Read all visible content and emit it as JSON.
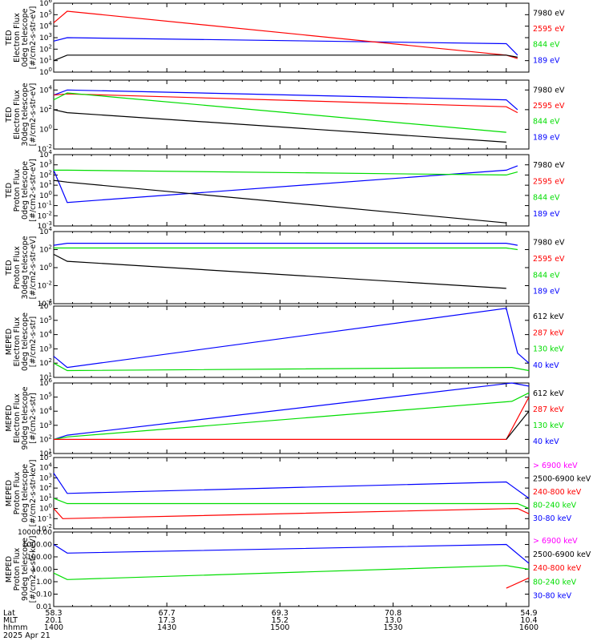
{
  "colors": {
    "black": "#000000",
    "red": "#ff0000",
    "green": "#00dd00",
    "blue": "#0000ff",
    "magenta": "#ff00ff"
  },
  "footer": {
    "labels": [
      "Lat",
      "MLT",
      "hhmm"
    ],
    "date": "2025 Apr 21",
    "columns": [
      [
        "58.3",
        "20.1",
        "1400"
      ],
      [
        "67.7",
        "17.3",
        "1430"
      ],
      [
        "69.3",
        "15.2",
        "1500"
      ],
      [
        "70.8",
        "13.0",
        "1530"
      ],
      [
        "54.9",
        "10.4",
        "1600"
      ]
    ]
  },
  "chart_data": [
    {
      "type": "line",
      "ylabel": [
        "TED",
        "Electron Flux",
        "0deg telescope",
        "[#/cm2-s-str-eV]"
      ],
      "yscale": "log",
      "ylim": [
        1,
        1000000
      ],
      "yticks": [
        {
          "v": 1,
          "label": "10^0"
        },
        {
          "v": 10,
          "label": "10^1"
        },
        {
          "v": 100,
          "label": "10^2"
        },
        {
          "v": 1000,
          "label": "10^3"
        },
        {
          "v": 10000,
          "label": "10^4"
        },
        {
          "v": 100000,
          "label": "10^5"
        },
        {
          "v": 1000000,
          "label": "10^6"
        }
      ],
      "legend": [
        "7980 eV",
        "2595 eV",
        "844 eV",
        "189 eV"
      ],
      "legend_colors": [
        "black",
        "red",
        "green",
        "blue"
      ],
      "series": [
        {
          "name": "189 eV",
          "color": "blue",
          "x": [
            0,
            0.12,
            4.0,
            4.1
          ],
          "y": [
            500,
            1000,
            300,
            30
          ]
        },
        {
          "name": "2595 eV",
          "color": "red",
          "x": [
            0,
            0.12,
            4.0,
            4.1
          ],
          "y": [
            20000,
            200000,
            30,
            15
          ]
        },
        {
          "name": "7980 eV",
          "color": "black",
          "x": [
            0,
            0.12,
            4.0,
            4.1
          ],
          "y": [
            10,
            30,
            30,
            20
          ]
        }
      ]
    },
    {
      "type": "line",
      "ylabel": [
        "TED",
        "Electron Flux",
        "30deg telescope",
        "[#/cm2-s-str-eV]"
      ],
      "yscale": "log",
      "ylim": [
        0.01,
        100000
      ],
      "yticks": [
        {
          "v": 0.01,
          "label": "10^-2"
        },
        {
          "v": 1,
          "label": "10^0"
        },
        {
          "v": 100,
          "label": "10^2"
        },
        {
          "v": 10000,
          "label": "10^4"
        }
      ],
      "legend": [
        "7980 eV",
        "2595 eV",
        "844 eV",
        "189 eV"
      ],
      "legend_colors": [
        "black",
        "red",
        "green",
        "blue"
      ],
      "series": [
        {
          "name": "189 eV",
          "color": "blue",
          "x": [
            0,
            0.12,
            4.0,
            4.1
          ],
          "y": [
            3000,
            10000,
            1000,
            100
          ]
        },
        {
          "name": "2595 eV",
          "color": "red",
          "x": [
            0,
            0.12,
            4.0,
            4.1
          ],
          "y": [
            3000,
            4000,
            200,
            50
          ]
        },
        {
          "name": "844 eV",
          "color": "green",
          "x": [
            0,
            0.12,
            4.0
          ],
          "y": [
            1000,
            5000,
            0.5
          ]
        },
        {
          "name": "7980 eV",
          "color": "black",
          "x": [
            0,
            0.12,
            4.0
          ],
          "y": [
            100,
            50,
            0.05
          ]
        }
      ]
    },
    {
      "type": "line",
      "ylabel": [
        "TED",
        "Proton Flux",
        "0deg telescope",
        "[#/cm2-s-str-eV]"
      ],
      "yscale": "log",
      "ylim": [
        0.001,
        10000
      ],
      "yticks": [
        {
          "v": 0.001,
          "label": "10^-3"
        },
        {
          "v": 0.01,
          "label": "10^-2"
        },
        {
          "v": 0.1,
          "label": "10^-1"
        },
        {
          "v": 1,
          "label": "10^0"
        },
        {
          "v": 10,
          "label": "10^1"
        },
        {
          "v": 100,
          "label": "10^2"
        },
        {
          "v": 1000,
          "label": "10^3"
        },
        {
          "v": 10000,
          "label": "10^4"
        }
      ],
      "legend": [
        "7980 eV",
        "2595 eV",
        "844 eV",
        "189 eV"
      ],
      "legend_colors": [
        "black",
        "red",
        "green",
        "blue"
      ],
      "series": [
        {
          "name": "189 eV",
          "color": "blue",
          "x": [
            0,
            0.12,
            4.0,
            4.1
          ],
          "y": [
            300,
            0.2,
            300,
            800
          ]
        },
        {
          "name": "844 eV",
          "color": "green",
          "x": [
            0,
            0.12,
            4.0,
            4.1
          ],
          "y": [
            300,
            300,
            100,
            200
          ]
        },
        {
          "name": "7980 eV",
          "color": "black",
          "x": [
            0,
            0.12,
            4.0
          ],
          "y": [
            30,
            20,
            0.002
          ]
        }
      ]
    },
    {
      "type": "line",
      "ylabel": [
        "TED",
        "Proton Flux",
        "30deg telescope",
        "[#/cm2-s-str-eV]"
      ],
      "yscale": "log",
      "ylim": [
        0.0001,
        10000
      ],
      "yticks": [
        {
          "v": 0.0001,
          "label": "10^-4"
        },
        {
          "v": 0.01,
          "label": "10^-2"
        },
        {
          "v": 1,
          "label": "10^0"
        },
        {
          "v": 100,
          "label": "10^2"
        },
        {
          "v": 10000,
          "label": "10^4"
        }
      ],
      "legend": [
        "7980 eV",
        "2595 eV",
        "844 eV",
        "189 eV"
      ],
      "legend_colors": [
        "black",
        "red",
        "green",
        "blue"
      ],
      "series": [
        {
          "name": "189 eV",
          "color": "blue",
          "x": [
            0,
            0.12,
            4.0,
            4.1
          ],
          "y": [
            300,
            500,
            500,
            300
          ]
        },
        {
          "name": "844 eV",
          "color": "green",
          "x": [
            0,
            0.12,
            4.0,
            4.1
          ],
          "y": [
            150,
            150,
            150,
            100
          ]
        },
        {
          "name": "7980 eV",
          "color": "black",
          "x": [
            0,
            0.12,
            4.0
          ],
          "y": [
            30,
            5,
            0.005
          ]
        }
      ]
    },
    {
      "type": "line",
      "ylabel": [
        "MEPED",
        "Electron Flux",
        "0deg telescope",
        "[#/cm2-s-str]"
      ],
      "yscale": "log",
      "ylim": [
        10,
        1000000
      ],
      "yticks": [
        {
          "v": 10,
          "label": "10^1"
        },
        {
          "v": 100,
          "label": "10^2"
        },
        {
          "v": 1000,
          "label": "10^3"
        },
        {
          "v": 10000,
          "label": "10^4"
        },
        {
          "v": 100000,
          "label": "10^5"
        },
        {
          "v": 1000000,
          "label": "10^6"
        }
      ],
      "legend": [
        "612 keV",
        "287 keV",
        "130 keV",
        "40 keV"
      ],
      "legend_colors": [
        "black",
        "red",
        "green",
        "blue"
      ],
      "series": [
        {
          "name": "40 keV",
          "color": "blue",
          "x": [
            0,
            0.12,
            4.0,
            4.1,
            4.2
          ],
          "y": [
            300,
            50,
            700000,
            500,
            100
          ]
        },
        {
          "name": "130 keV",
          "color": "green",
          "x": [
            0,
            0.12,
            4.05,
            4.2
          ],
          "y": [
            100,
            30,
            50,
            30
          ]
        }
      ]
    },
    {
      "type": "line",
      "ylabel": [
        "MEPED",
        "Electron Flux",
        "90deg telescope",
        "[#/cm2-s-str]"
      ],
      "yscale": "log",
      "ylim": [
        10,
        1000000
      ],
      "yticks": [
        {
          "v": 10,
          "label": "10^1"
        },
        {
          "v": 100,
          "label": "10^2"
        },
        {
          "v": 1000,
          "label": "10^3"
        },
        {
          "v": 10000,
          "label": "10^4"
        },
        {
          "v": 100000,
          "label": "10^5"
        },
        {
          "v": 1000000,
          "label": "10^6"
        }
      ],
      "legend": [
        "612 keV",
        "287 keV",
        "130 keV",
        "40 keV"
      ],
      "legend_colors": [
        "black",
        "red",
        "green",
        "blue"
      ],
      "series": [
        {
          "name": "40 keV",
          "color": "blue",
          "x": [
            0,
            0.12,
            4.05,
            4.2
          ],
          "y": [
            100,
            200,
            1000000,
            600000
          ]
        },
        {
          "name": "130 keV",
          "color": "green",
          "x": [
            0,
            0.12,
            4.05,
            4.2
          ],
          "y": [
            100,
            150,
            50000,
            200000
          ]
        },
        {
          "name": "287 keV",
          "color": "red",
          "x": [
            0,
            0.12,
            4.0,
            4.2
          ],
          "y": [
            100,
            100,
            100,
            100000
          ]
        },
        {
          "name": "612 keV",
          "color": "black",
          "x": [
            4.0,
            4.2
          ],
          "y": [
            100,
            10000
          ]
        }
      ]
    },
    {
      "type": "line",
      "ylabel": [
        "MEPED",
        "Proton Flux",
        "0deg telescope",
        "[#/cm2-s-str-keV]"
      ],
      "yscale": "log",
      "ylim": [
        0.01,
        100000
      ],
      "yticks": [
        {
          "v": 0.01,
          "label": "10^-2"
        },
        {
          "v": 0.1,
          "label": "10^-1"
        },
        {
          "v": 1,
          "label": "10^0"
        },
        {
          "v": 10,
          "label": "10^1"
        },
        {
          "v": 100,
          "label": "10^2"
        },
        {
          "v": 1000,
          "label": "10^3"
        },
        {
          "v": 10000,
          "label": "10^4"
        },
        {
          "v": 100000,
          "label": "10^5"
        }
      ],
      "legend": [
        "> 6900 keV",
        "2500-6900 keV",
        "240-800 keV",
        "80-240 keV",
        "30-80 keV"
      ],
      "legend_colors": [
        "magenta",
        "black",
        "red",
        "green",
        "blue"
      ],
      "series": [
        {
          "name": "30-80 keV",
          "color": "blue",
          "x": [
            0,
            0.12,
            4.0,
            4.2
          ],
          "y": [
            3000,
            30,
            400,
            10
          ]
        },
        {
          "name": "80-240 keV",
          "color": "green",
          "x": [
            0,
            0.12,
            4.1,
            4.2
          ],
          "y": [
            10,
            3,
            3,
            1
          ]
        },
        {
          "name": "240-800 keV",
          "color": "red",
          "x": [
            0,
            0.08,
            4.1,
            4.2
          ],
          "y": [
            1,
            0.1,
            1,
            0.3
          ]
        }
      ]
    },
    {
      "type": "line",
      "ylabel": [
        "MEPED",
        "Proton Flux",
        "90deg telescope",
        "[#/cm2-s-str-keV]"
      ],
      "yscale": "log",
      "ylim": [
        0.01,
        10000
      ],
      "yticks": [
        {
          "v": 0.01,
          "label": "0.01"
        },
        {
          "v": 0.1,
          "label": "0.10"
        },
        {
          "v": 1,
          "label": "1.00"
        },
        {
          "v": 10,
          "label": "10.00"
        },
        {
          "v": 100,
          "label": "100.00"
        },
        {
          "v": 1000,
          "label": "1000.00"
        },
        {
          "v": 10000,
          "label": "10000.00"
        }
      ],
      "legend": [
        "> 6900 keV",
        "2500-6900 keV",
        "240-800 keV",
        "80-240 keV",
        "30-80 keV"
      ],
      "legend_colors": [
        "magenta",
        "black",
        "red",
        "green",
        "blue"
      ],
      "series": [
        {
          "name": "30-80 keV",
          "color": "blue",
          "x": [
            0,
            0.12,
            4.0,
            4.2
          ],
          "y": [
            1000,
            200,
            1000,
            30
          ]
        },
        {
          "name": "80-240 keV",
          "color": "green",
          "x": [
            0,
            0.12,
            4.0,
            4.2
          ],
          "y": [
            5,
            1.5,
            20,
            10
          ]
        },
        {
          "name": "240-800 keV",
          "color": "red",
          "x": [
            4.0,
            4.2
          ],
          "y": [
            0.3,
            2
          ]
        }
      ]
    }
  ]
}
